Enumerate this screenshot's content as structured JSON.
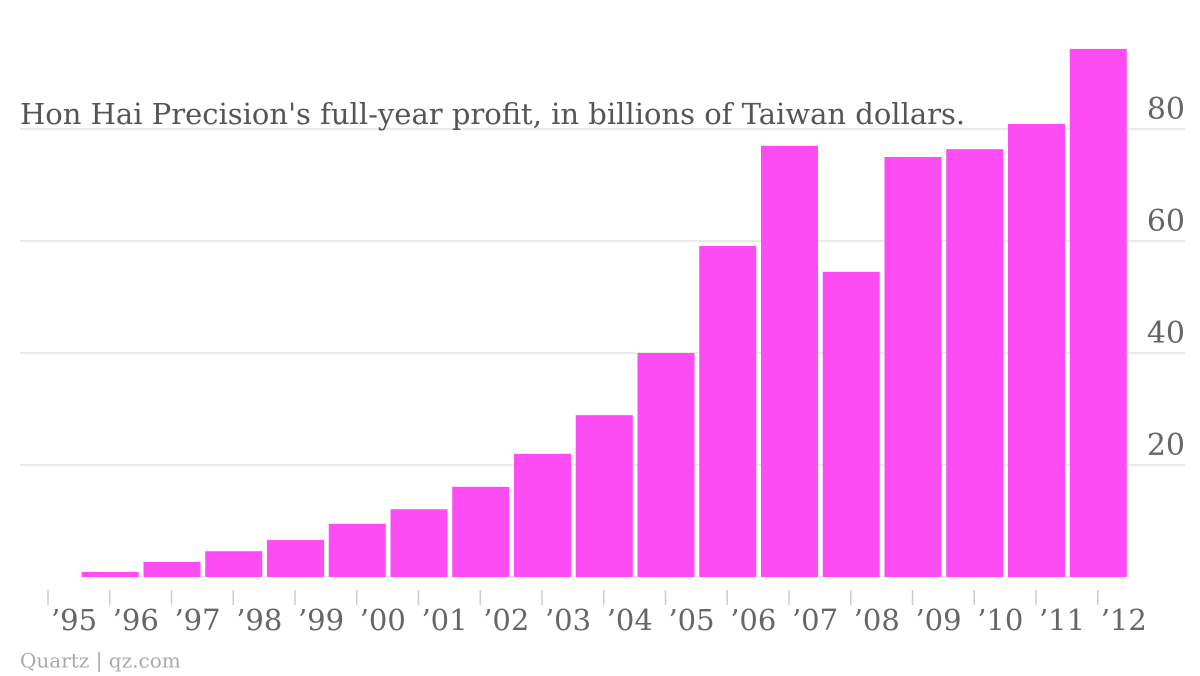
{
  "chart_data": {
    "type": "bar",
    "title": "Hon Hai Precision's full-year profit, in billions of Taiwan dollars.",
    "source": "Quartz | qz.com",
    "categories": [
      "’95",
      "’96",
      "’97",
      "’98",
      "’99",
      "’00",
      "’01",
      "’02",
      "’03",
      "’04",
      "’05",
      "’06",
      "’07",
      "’08",
      "’09",
      "’10",
      "’11",
      "’12"
    ],
    "values": [
      null,
      0.9,
      2.7,
      4.6,
      6.6,
      9.5,
      12.1,
      16.1,
      22,
      28.9,
      40,
      59.1,
      77,
      54.5,
      75,
      76.4,
      80.9,
      94.3
    ],
    "color": "#fd4cf4",
    "ylim": [
      0,
      95
    ],
    "yticks": [
      20,
      40,
      60,
      80
    ],
    "grid": true
  }
}
